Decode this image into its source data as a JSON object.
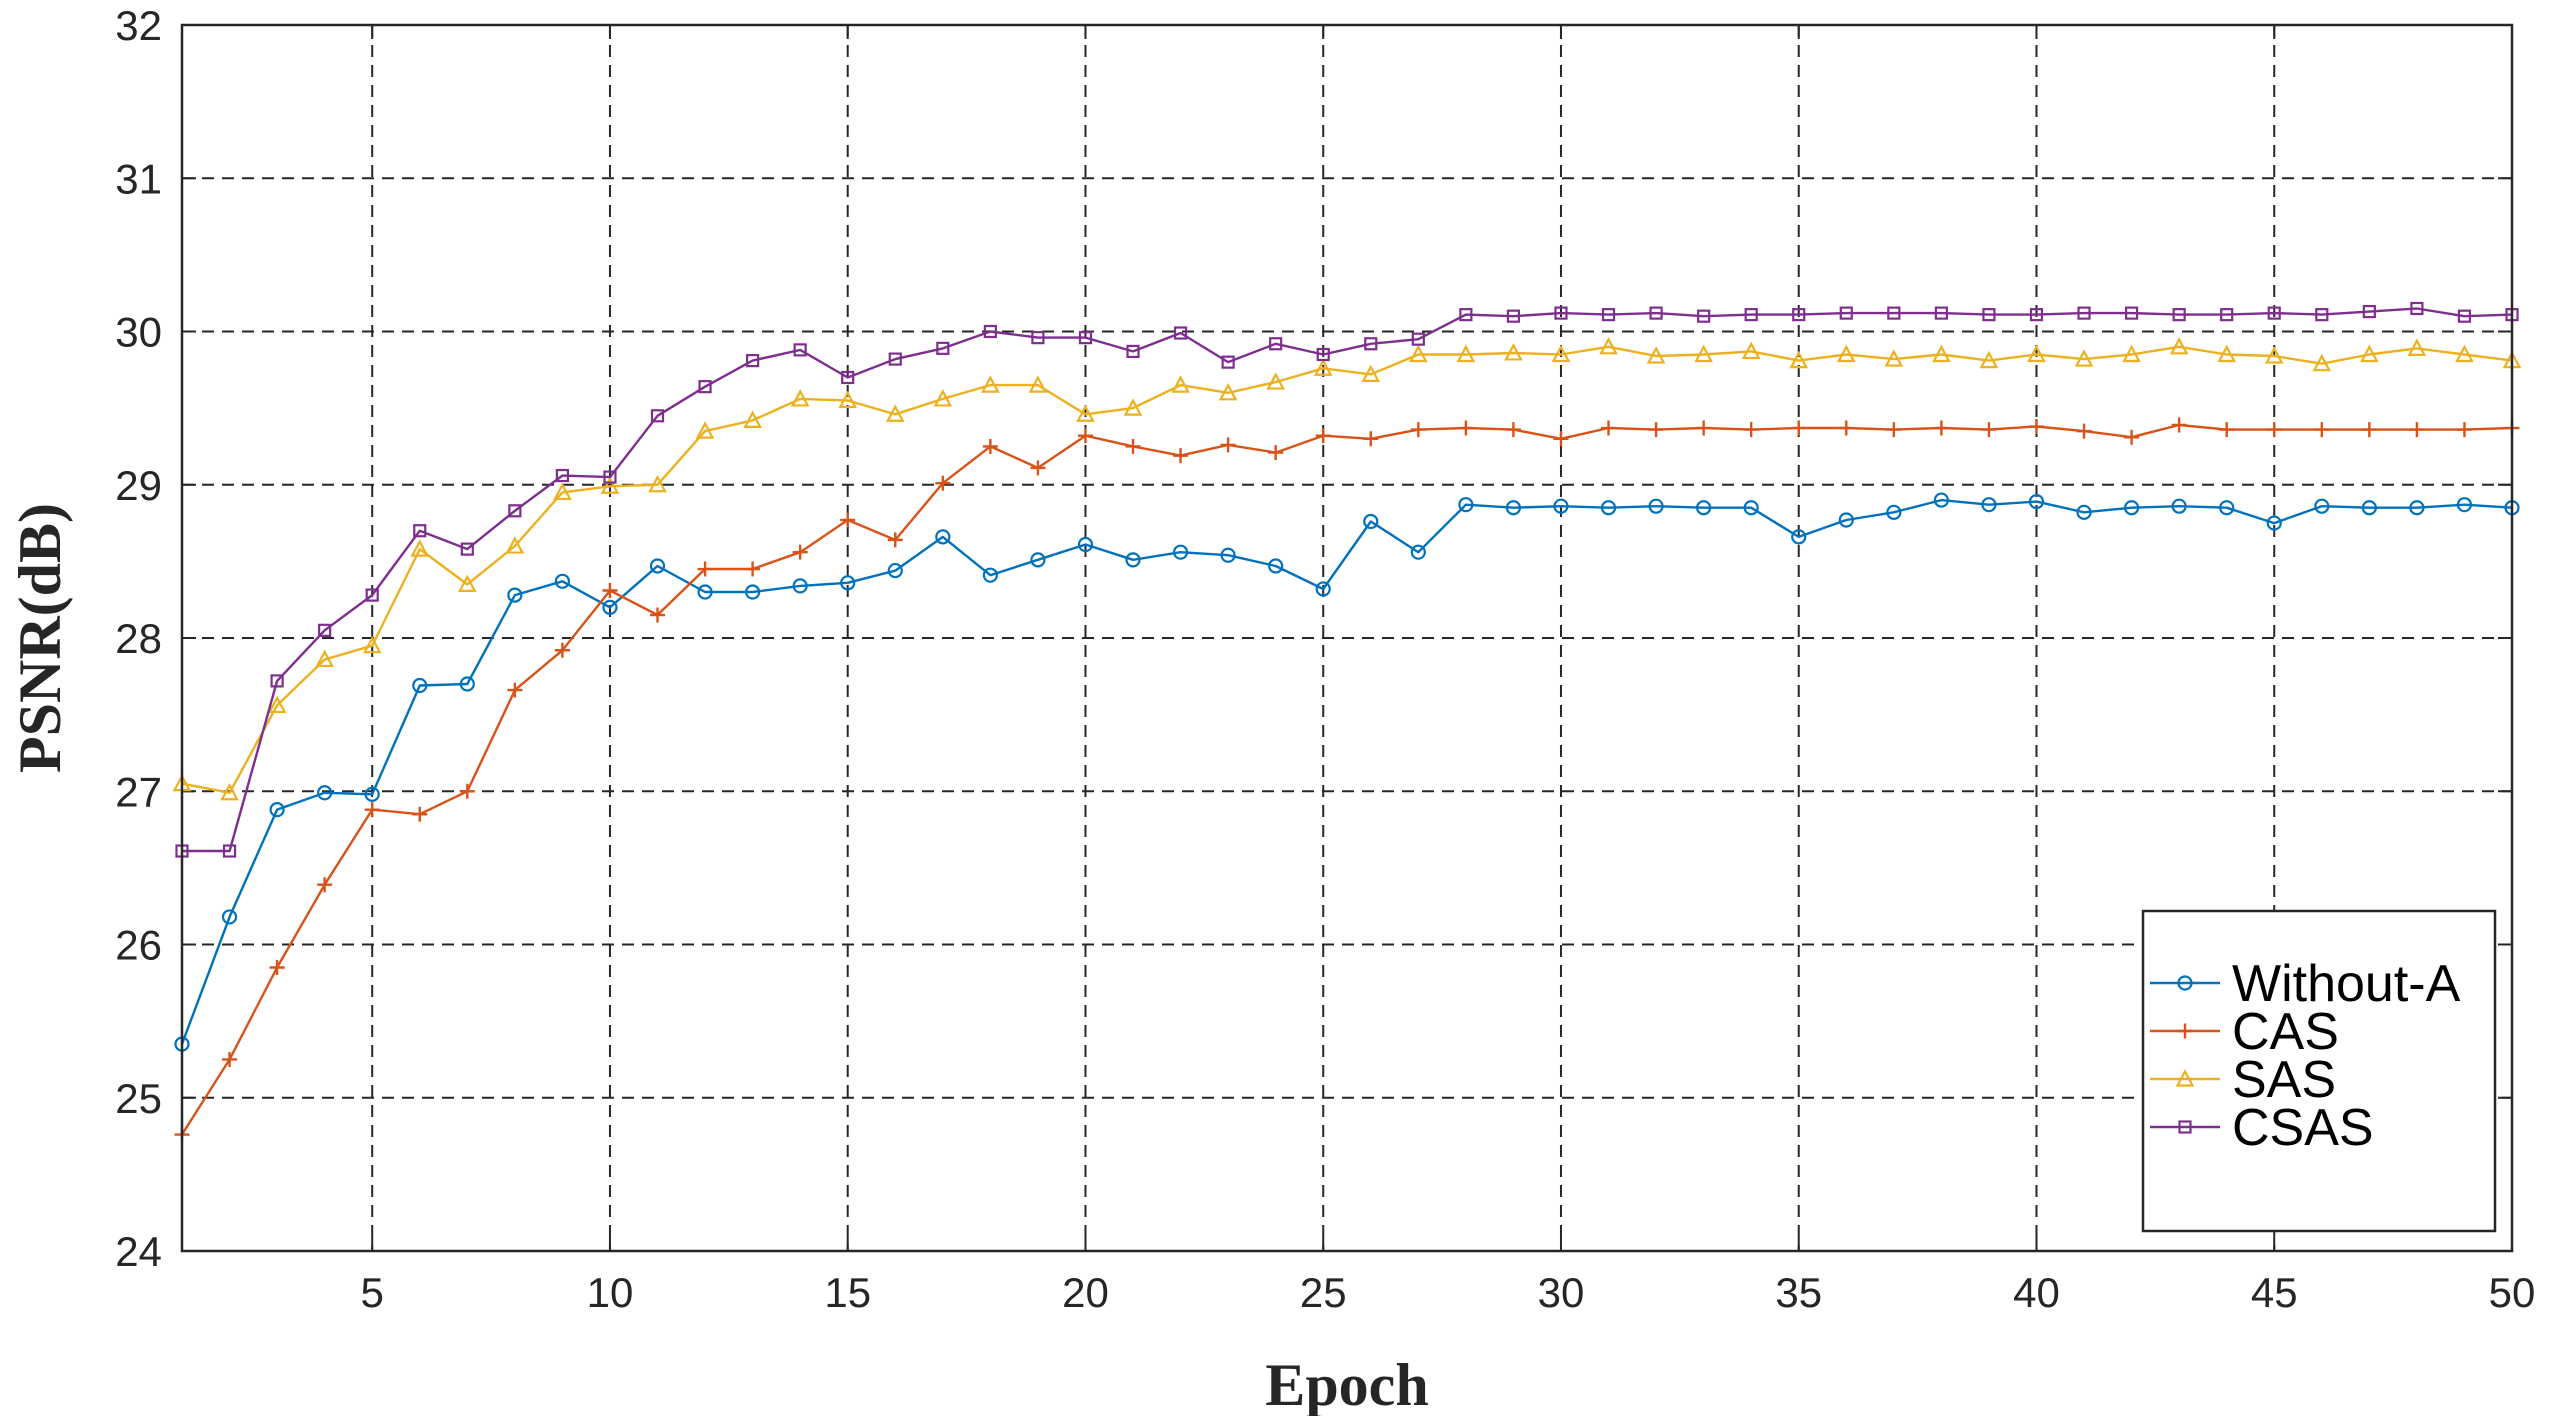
{
  "chart_data": {
    "type": "line",
    "title": "",
    "xlabel": "Epoch",
    "ylabel": "PSNR(dB)",
    "xlim": [
      1,
      50
    ],
    "ylim": [
      24,
      32
    ],
    "xticks": [
      5,
      10,
      15,
      20,
      25,
      30,
      35,
      40,
      45,
      50
    ],
    "yticks": [
      24,
      25,
      26,
      27,
      28,
      29,
      30,
      31,
      32
    ],
    "grid": true,
    "legend_position": "bottom-right",
    "x": [
      1,
      2,
      3,
      4,
      5,
      6,
      7,
      8,
      9,
      10,
      11,
      12,
      13,
      14,
      15,
      16,
      17,
      18,
      19,
      20,
      21,
      22,
      23,
      24,
      25,
      26,
      27,
      28,
      29,
      30,
      31,
      32,
      33,
      34,
      35,
      36,
      37,
      38,
      39,
      40,
      41,
      42,
      43,
      44,
      45,
      46,
      47,
      48,
      49,
      50
    ],
    "series": [
      {
        "name": "Without-A",
        "color": "#0072BD",
        "marker": "circle",
        "values": [
          25.35,
          26.18,
          26.88,
          26.99,
          26.98,
          27.69,
          27.7,
          28.28,
          28.37,
          28.2,
          28.47,
          28.3,
          28.3,
          28.34,
          28.36,
          28.44,
          28.66,
          28.41,
          28.51,
          28.61,
          28.51,
          28.56,
          28.54,
          28.47,
          28.32,
          28.76,
          28.56,
          28.87,
          28.85,
          28.86,
          28.85,
          28.86,
          28.85,
          28.85,
          28.66,
          28.77,
          28.82,
          28.9,
          28.87,
          28.89,
          28.82,
          28.85,
          28.86,
          28.85,
          28.75,
          28.86,
          28.85,
          28.85,
          28.87,
          28.85
        ]
      },
      {
        "name": "CAS",
        "color": "#D95319",
        "marker": "plus",
        "values": [
          24.76,
          25.25,
          25.85,
          26.39,
          26.88,
          26.85,
          27.0,
          27.66,
          27.92,
          28.31,
          28.15,
          28.45,
          28.45,
          28.56,
          28.77,
          28.64,
          29.01,
          29.25,
          29.11,
          29.32,
          29.25,
          29.19,
          29.26,
          29.21,
          29.32,
          29.3,
          29.36,
          29.37,
          29.36,
          29.3,
          29.37,
          29.36,
          29.37,
          29.36,
          29.37,
          29.37,
          29.36,
          29.37,
          29.36,
          29.38,
          29.35,
          29.31,
          29.39,
          29.36,
          29.36,
          29.36,
          29.36,
          29.36,
          29.36,
          29.37
        ]
      },
      {
        "name": "SAS",
        "color": "#EDB120",
        "marker": "triangle",
        "values": [
          27.05,
          26.99,
          27.56,
          27.86,
          27.95,
          28.58,
          28.35,
          28.6,
          28.95,
          28.99,
          29.0,
          29.35,
          29.42,
          29.56,
          29.55,
          29.46,
          29.56,
          29.65,
          29.65,
          29.46,
          29.5,
          29.65,
          29.6,
          29.67,
          29.76,
          29.72,
          29.85,
          29.85,
          29.86,
          29.85,
          29.9,
          29.84,
          29.85,
          29.87,
          29.81,
          29.85,
          29.82,
          29.85,
          29.81,
          29.85,
          29.82,
          29.85,
          29.9,
          29.85,
          29.84,
          29.79,
          29.85,
          29.89,
          29.85,
          29.81
        ]
      },
      {
        "name": "CSAS",
        "color": "#7E2F8E",
        "marker": "square",
        "values": [
          26.61,
          26.61,
          27.72,
          28.05,
          28.28,
          28.7,
          28.58,
          28.83,
          29.06,
          29.05,
          29.45,
          29.64,
          29.81,
          29.88,
          29.7,
          29.82,
          29.89,
          30.0,
          29.96,
          29.96,
          29.87,
          29.99,
          29.8,
          29.92,
          29.85,
          29.92,
          29.95,
          30.11,
          30.1,
          30.12,
          30.11,
          30.12,
          30.1,
          30.11,
          30.11,
          30.12,
          30.12,
          30.12,
          30.11,
          30.11,
          30.12,
          30.12,
          30.11,
          30.11,
          30.12,
          30.11,
          30.13,
          30.15,
          30.1,
          30.11
        ]
      }
    ]
  }
}
